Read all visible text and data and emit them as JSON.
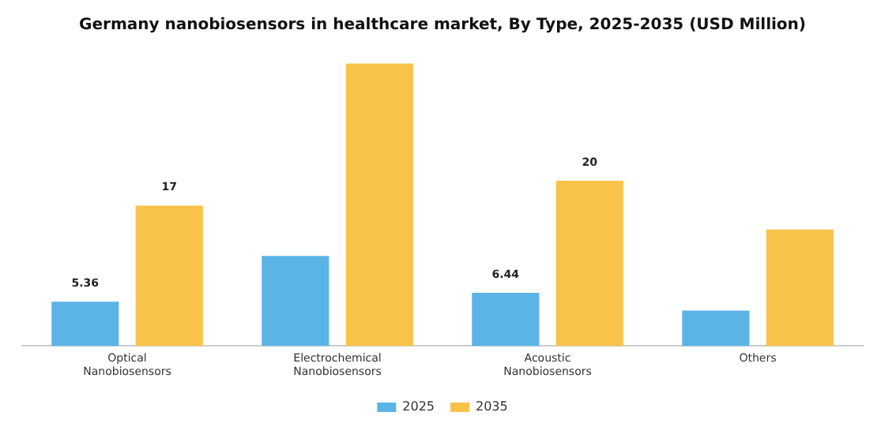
{
  "chart_data": {
    "type": "bar",
    "title": "Germany nanobiosensors in healthcare market, By Type, 2025-2035 (USD Million)",
    "categories": [
      "Optical Nanobiosensors",
      "Electrochemical Nanobiosensors",
      "Acoustic Nanobiosensors",
      "Others"
    ],
    "series": [
      {
        "name": "2025",
        "color": "#5ab4e5",
        "values": [
          5.36,
          10.9,
          6.44,
          4.3
        ],
        "value_labels": [
          "5.36",
          null,
          "6.44",
          null
        ]
      },
      {
        "name": "2035",
        "color": "#f9c34a",
        "values": [
          17,
          34.2,
          20,
          14.1
        ],
        "value_labels": [
          "17",
          null,
          "20",
          null
        ]
      }
    ],
    "legend": "bottom",
    "grid": false
  }
}
